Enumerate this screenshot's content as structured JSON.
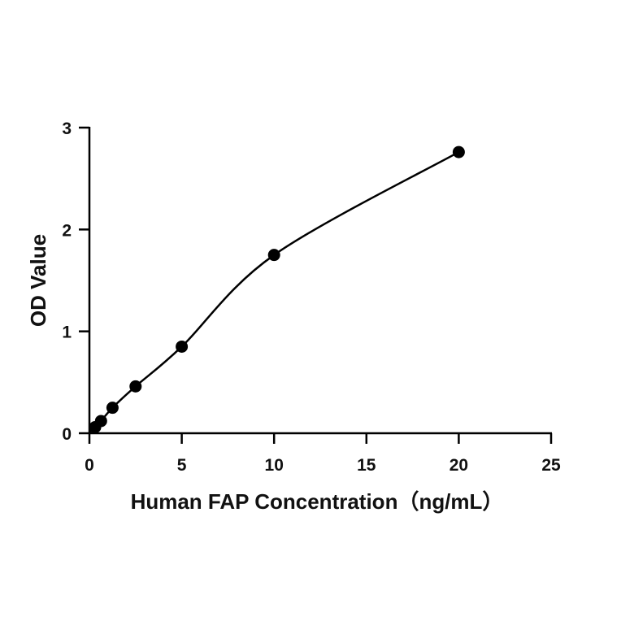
{
  "chart_data": {
    "type": "scatter",
    "title": "",
    "xlabel": "Human FAP Concentration（ng/mL）",
    "ylabel": "OD Value",
    "xlim": [
      0,
      25
    ],
    "ylim": [
      0,
      3
    ],
    "xticks": [
      "0",
      "5",
      "10",
      "15",
      "20",
      "25"
    ],
    "yticks": [
      "0",
      "1",
      "2",
      "3"
    ],
    "grid": false,
    "legend": "none",
    "fit_curve": true,
    "colors": {
      "points": "#000000",
      "curve": "#000000"
    },
    "series": [
      {
        "x": [
          0.31,
          0.63,
          1.25,
          2.5,
          5,
          10,
          20
        ],
        "y": [
          0.06,
          0.12,
          0.25,
          0.46,
          0.85,
          1.75,
          2.76
        ]
      }
    ]
  }
}
